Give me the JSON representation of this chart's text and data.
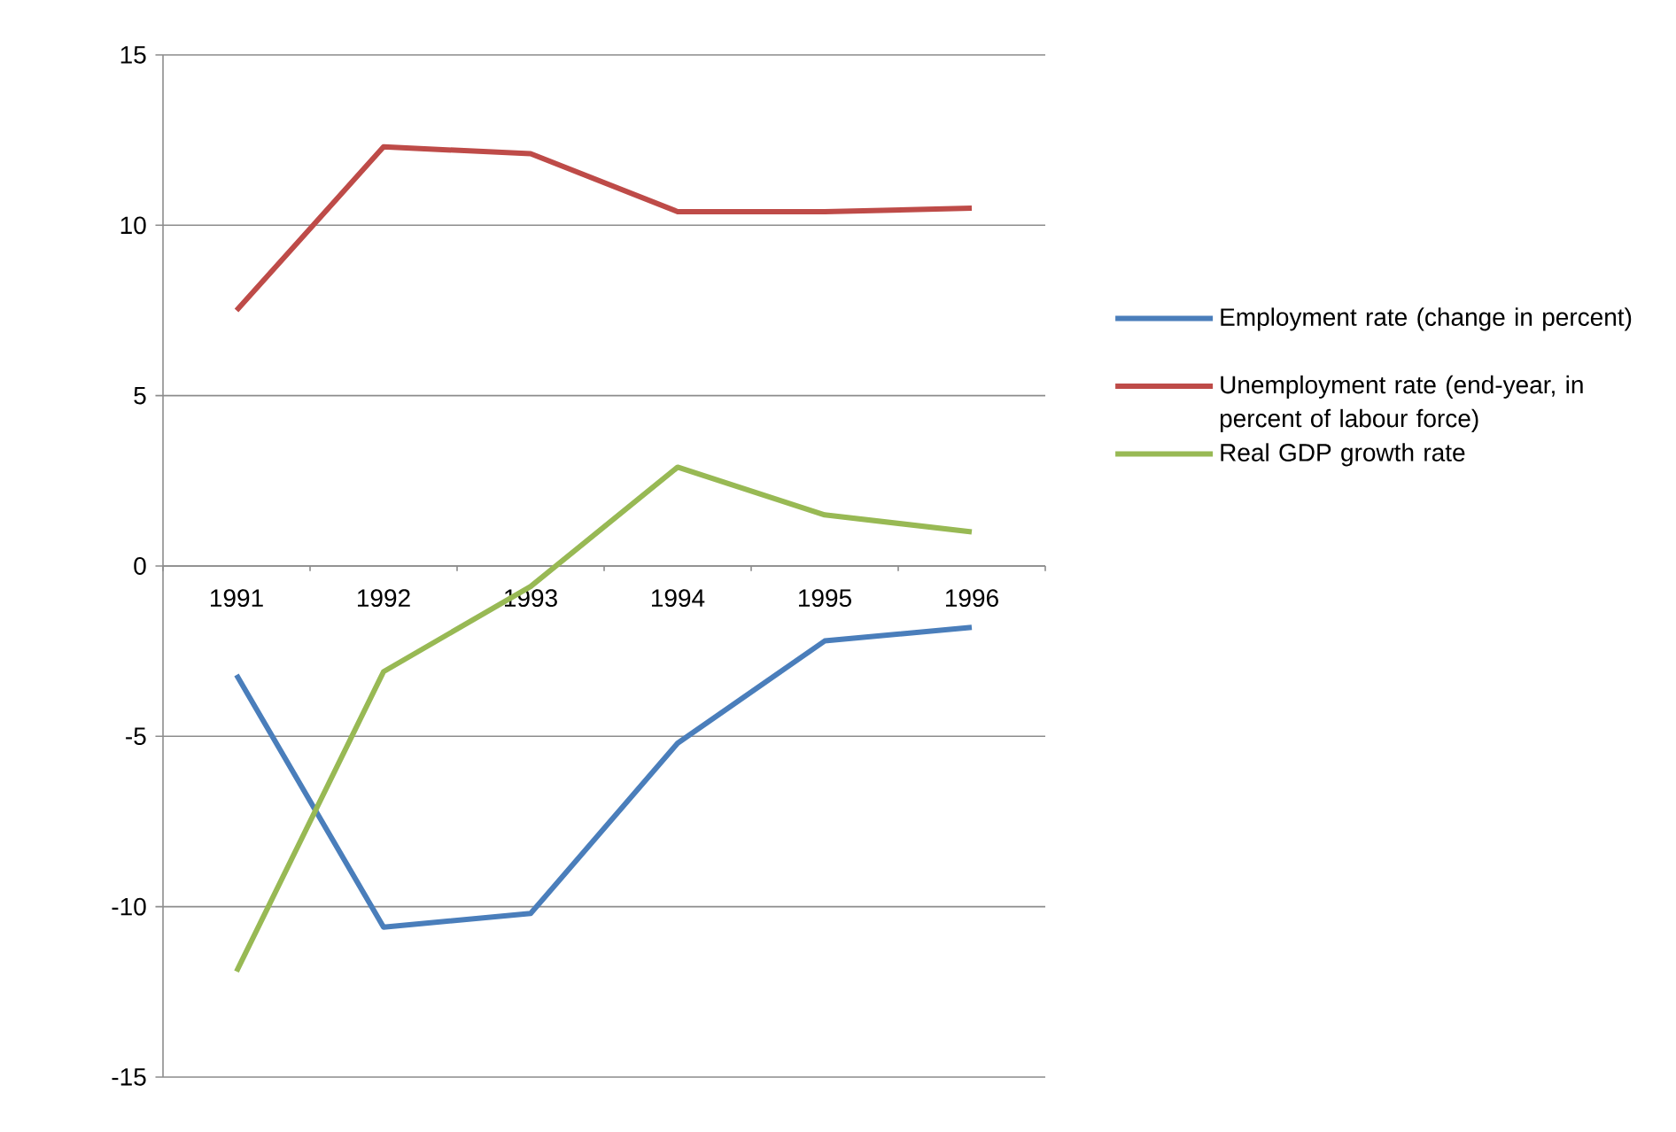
{
  "chart_data": {
    "type": "line",
    "categories": [
      "1991",
      "1992",
      "1993",
      "1994",
      "1995",
      "1996"
    ],
    "series": [
      {
        "name": "Employment rate (change in percent)",
        "color": "#4a7ebb",
        "values": [
          -3.2,
          -10.6,
          -10.2,
          -5.2,
          -2.2,
          -1.8
        ]
      },
      {
        "name": "Unemployment rate (end-year, in percent of labour force)",
        "color": "#be4b48",
        "values": [
          7.5,
          12.3,
          12.1,
          10.4,
          10.4,
          10.5
        ]
      },
      {
        "name": "Real GDP growth rate",
        "color": "#98b954",
        "values": [
          -11.9,
          -3.1,
          -0.6,
          2.9,
          1.5,
          1.0
        ]
      }
    ],
    "ylim": [
      -15,
      15
    ],
    "yticks": [
      -15,
      -10,
      -5,
      0,
      5,
      10,
      15
    ],
    "grid": "y",
    "legend": "right"
  }
}
